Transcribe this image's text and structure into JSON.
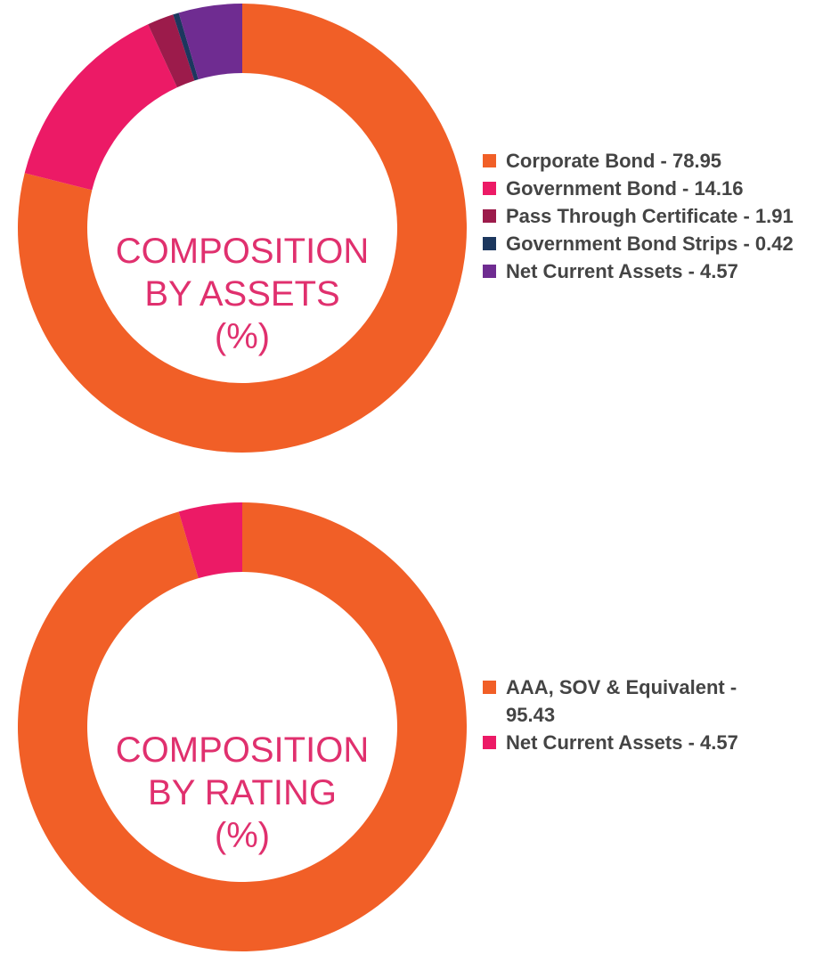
{
  "chart_data": [
    {
      "type": "pie",
      "donut": true,
      "title": [
        "COMPOSITION",
        "BY ASSETS",
        "(%)"
      ],
      "legend_position": "right",
      "slices": [
        {
          "label": "Corporate Bond - 78.95",
          "name": "Corporate Bond",
          "value": 78.95,
          "color": "#f15f27"
        },
        {
          "label": "Government Bond - 14.16",
          "name": "Government Bond",
          "value": 14.16,
          "color": "#ec1a66"
        },
        {
          "label": "Pass Through Certificate - 1.91",
          "name": "Pass Through Certificate",
          "value": 1.91,
          "color": "#9c1b4b"
        },
        {
          "label": "Government Bond Strips - 0.42",
          "name": "Government Bond Strips",
          "value": 0.42,
          "color": "#1c375e"
        },
        {
          "label": "Net Current Assets - 4.57",
          "name": "Net Current Assets",
          "value": 4.57,
          "color": "#6f2c91"
        }
      ]
    },
    {
      "type": "pie",
      "donut": true,
      "title": [
        "COMPOSITION",
        "BY RATING",
        "(%)"
      ],
      "legend_position": "right",
      "slices": [
        {
          "label": "AAA, SOV & Equivalent - 95.43",
          "name": "AAA, SOV & Equivalent",
          "value": 95.43,
          "color": "#f15f27"
        },
        {
          "label": "Net Current Assets - 4.57",
          "name": "Net Current Assets",
          "value": 4.57,
          "color": "#ec1a66"
        }
      ]
    }
  ]
}
